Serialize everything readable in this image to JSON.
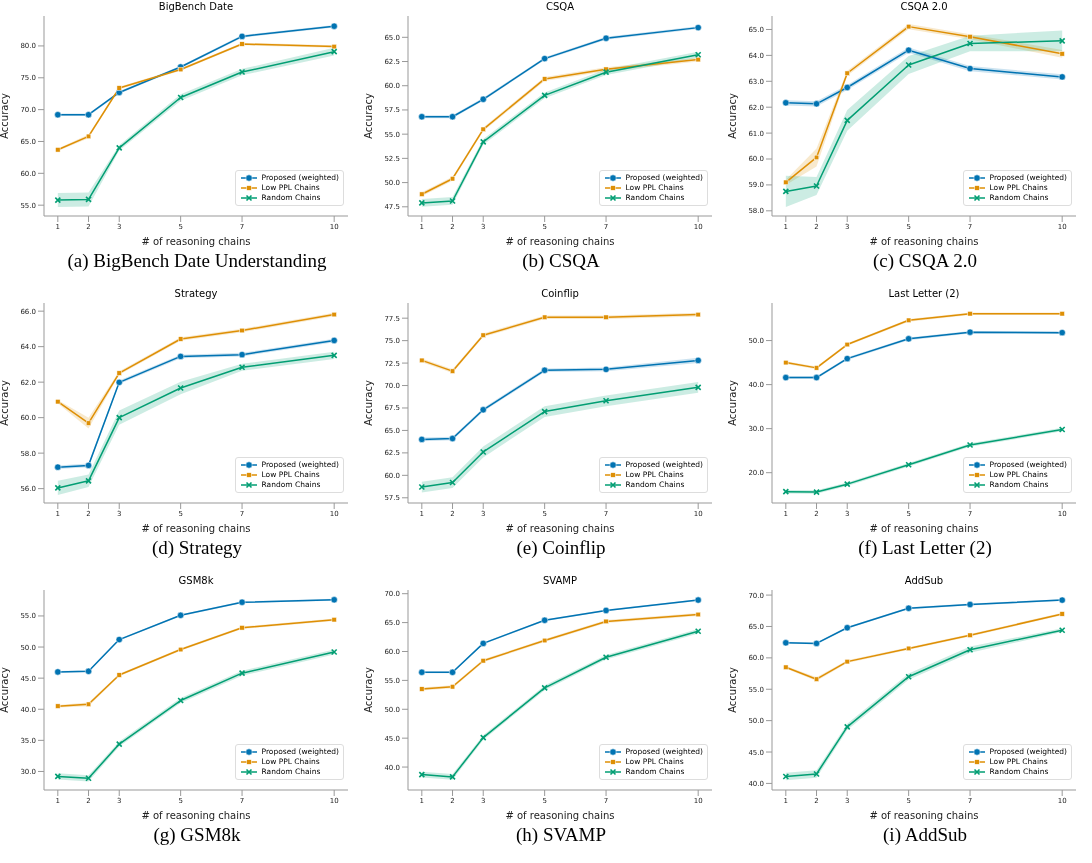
{
  "chart_data": [
    {
      "type": "line",
      "title": "BigBench Date",
      "xlabel": "# of reasoning chains",
      "ylabel": "Accuracy",
      "annotations": [
        "(a) BigBench Date Understanding"
      ],
      "legend": "bottom right",
      "x": [
        1,
        2,
        3,
        5,
        7,
        10
      ],
      "xlim": [
        0.55,
        10.45
      ],
      "xticks": [
        1,
        2,
        3,
        5,
        7,
        10
      ],
      "ylim": [
        53.3,
        84.7
      ],
      "yticks": [
        {
          "value": 55,
          "label": "55.0"
        },
        {
          "value": 60,
          "label": "60.0"
        },
        {
          "value": 65,
          "label": "65.0"
        },
        {
          "value": 70,
          "label": "70.0"
        },
        {
          "value": 75,
          "label": "75.0"
        },
        {
          "value": 80,
          "label": "80.0"
        }
      ],
      "series": [
        {
          "name": "Proposed (weighted)",
          "color": "#0173b2",
          "marker": "circle",
          "values": [
            69.2,
            69.2,
            72.7,
            76.7,
            81.5,
            83.1
          ],
          "lower": [
            69.0,
            69.0,
            72.5,
            76.5,
            81.3,
            82.9
          ],
          "upper": [
            69.4,
            69.4,
            72.9,
            76.9,
            81.7,
            83.3
          ]
        },
        {
          "name": "Low PPL Chains",
          "color": "#de8f05",
          "marker": "square",
          "values": [
            63.7,
            65.8,
            73.4,
            76.3,
            80.3,
            79.9
          ],
          "lower": [
            63.5,
            65.5,
            73.2,
            76.1,
            80.1,
            79.7
          ],
          "upper": [
            63.9,
            66.1,
            73.6,
            76.5,
            80.5,
            80.1
          ]
        },
        {
          "name": "Random Chains",
          "color": "#029e73",
          "marker": "cross",
          "values": [
            55.8,
            55.9,
            64.0,
            71.9,
            75.9,
            79.1
          ],
          "lower": [
            54.7,
            54.8,
            63.6,
            71.4,
            75.4,
            78.5
          ],
          "upper": [
            56.9,
            57.0,
            64.4,
            72.4,
            76.4,
            79.7
          ]
        }
      ]
    },
    {
      "type": "line",
      "title": "CSQA",
      "xlabel": "# of reasoning chains",
      "ylabel": "Accuracy",
      "annotations": [
        "(b) CSQA"
      ],
      "legend": "bottom right",
      "x": [
        1,
        2,
        3,
        5,
        7,
        10
      ],
      "xlim": [
        0.55,
        10.45
      ],
      "xticks": [
        1,
        2,
        3,
        5,
        7,
        10
      ],
      "ylim": [
        46.55,
        67.2
      ],
      "yticks": [
        47.5,
        {
          "value": 50,
          "label": "50.0"
        },
        52.5,
        {
          "value": 55,
          "label": "55.0"
        },
        57.5,
        {
          "value": 60,
          "label": "60.0"
        },
        62.5,
        {
          "value": 65,
          "label": "65.0"
        }
      ],
      "series": [
        {
          "name": "Proposed (weighted)",
          "color": "#0173b2",
          "marker": "circle",
          "values": [
            56.8,
            56.8,
            58.6,
            62.8,
            64.9,
            66.0
          ],
          "lower": [
            56.65,
            56.65,
            58.45,
            62.65,
            64.75,
            65.85
          ],
          "upper": [
            56.95,
            56.95,
            58.75,
            62.95,
            65.05,
            66.15
          ]
        },
        {
          "name": "Low PPL Chains",
          "color": "#de8f05",
          "marker": "square",
          "values": [
            48.8,
            50.4,
            55.5,
            60.7,
            61.7,
            62.7
          ],
          "lower": [
            48.6,
            50.2,
            55.3,
            60.5,
            61.5,
            62.5
          ],
          "upper": [
            49.0,
            50.6,
            55.7,
            60.9,
            61.9,
            62.9
          ]
        },
        {
          "name": "Random Chains",
          "color": "#029e73",
          "marker": "cross",
          "values": [
            47.9,
            48.1,
            54.2,
            59.0,
            61.4,
            63.2
          ],
          "lower": [
            47.5,
            47.7,
            53.9,
            58.7,
            61.1,
            62.9
          ],
          "upper": [
            48.3,
            48.5,
            54.5,
            59.3,
            61.7,
            63.5
          ]
        }
      ]
    },
    {
      "type": "line",
      "title": "CSQA 2.0",
      "xlabel": "# of reasoning chains",
      "ylabel": "Accuracy",
      "annotations": [
        "(c) CSQA 2.0"
      ],
      "legend": "bottom right",
      "x": [
        1,
        2,
        3,
        5,
        7,
        10
      ],
      "xlim": [
        0.55,
        10.45
      ],
      "xticks": [
        1,
        2,
        3,
        5,
        7,
        10
      ],
      "ylim": [
        57.8,
        65.52
      ],
      "yticks": [
        {
          "value": 58,
          "label": "58.0"
        },
        {
          "value": 59,
          "label": "59.0"
        },
        {
          "value": 60,
          "label": "60.0"
        },
        {
          "value": 61,
          "label": "61.0"
        },
        {
          "value": 62,
          "label": "62.0"
        },
        {
          "value": 63,
          "label": "63.0"
        },
        {
          "value": 64,
          "label": "64.0"
        },
        {
          "value": 65,
          "label": "65.0"
        }
      ],
      "series": [
        {
          "name": "Proposed (weighted)",
          "color": "#0173b2",
          "marker": "circle",
          "values": [
            62.17,
            62.13,
            62.76,
            64.2,
            63.49,
            63.17
          ],
          "lower": [
            62.07,
            62.03,
            62.66,
            64.1,
            63.39,
            63.07
          ],
          "upper": [
            62.27,
            62.23,
            62.86,
            64.3,
            63.59,
            63.27
          ]
        },
        {
          "name": "Low PPL Chains",
          "color": "#de8f05",
          "marker": "square",
          "values": [
            59.1,
            60.06,
            63.31,
            65.11,
            64.72,
            64.06
          ],
          "lower": [
            59.0,
            59.71,
            63.21,
            65.01,
            64.62,
            63.91
          ],
          "upper": [
            59.2,
            60.41,
            63.41,
            65.21,
            64.82,
            64.21
          ]
        },
        {
          "name": "Random Chains",
          "color": "#029e73",
          "marker": "cross",
          "values": [
            58.75,
            58.96,
            61.49,
            63.63,
            64.46,
            64.56
          ],
          "lower": [
            58.15,
            58.61,
            61.09,
            63.28,
            64.16,
            64.16
          ],
          "upper": [
            59.35,
            59.31,
            61.89,
            63.98,
            64.76,
            64.96
          ]
        }
      ]
    },
    {
      "type": "line",
      "title": "Strategy",
      "xlabel": "# of reasoning chains",
      "ylabel": "Accuracy",
      "annotations": [
        "(d) Strategy"
      ],
      "legend": "bottom right",
      "x": [
        1,
        2,
        3,
        5,
        7,
        10
      ],
      "xlim": [
        0.55,
        10.45
      ],
      "xticks": [
        1,
        2,
        3,
        5,
        7,
        10
      ],
      "ylim": [
        55.19,
        66.46
      ],
      "yticks": [
        {
          "value": 56,
          "label": "56.0"
        },
        {
          "value": 58,
          "label": "58.0"
        },
        {
          "value": 60,
          "label": "60.0"
        },
        {
          "value": 62,
          "label": "62.0"
        },
        {
          "value": 64,
          "label": "64.0"
        },
        {
          "value": 66,
          "label": "66.0"
        }
      ],
      "series": [
        {
          "name": "Proposed (weighted)",
          "color": "#0173b2",
          "marker": "circle",
          "values": [
            57.21,
            57.31,
            61.99,
            63.45,
            63.55,
            64.35
          ],
          "lower": [
            57.11,
            57.21,
            61.89,
            63.35,
            63.45,
            64.25
          ],
          "upper": [
            57.31,
            57.41,
            62.09,
            63.55,
            63.65,
            64.45
          ]
        },
        {
          "name": "Low PPL Chains",
          "color": "#de8f05",
          "marker": "square",
          "values": [
            60.9,
            59.69,
            62.51,
            64.43,
            64.91,
            65.81
          ],
          "lower": [
            60.8,
            59.39,
            62.41,
            64.33,
            64.81,
            65.71
          ],
          "upper": [
            61.0,
            59.99,
            62.61,
            64.53,
            65.01,
            65.91
          ]
        },
        {
          "name": "Random Chains",
          "color": "#029e73",
          "marker": "cross",
          "values": [
            56.04,
            56.44,
            60.0,
            61.67,
            62.84,
            63.51
          ],
          "lower": [
            55.64,
            56.09,
            59.6,
            61.32,
            62.64,
            63.31
          ],
          "upper": [
            56.44,
            56.79,
            60.4,
            62.02,
            63.04,
            63.71
          ]
        }
      ]
    },
    {
      "type": "line",
      "title": "Coinflip",
      "xlabel": "# of reasoning chains",
      "ylabel": "Accuracy",
      "annotations": [
        "(e) Coinflip"
      ],
      "legend": "bottom right",
      "x": [
        1,
        2,
        3,
        5,
        7,
        10
      ],
      "xlim": [
        0.55,
        10.45
      ],
      "xticks": [
        1,
        2,
        3,
        5,
        7,
        10
      ],
      "ylim": [
        56.92,
        79.19
      ],
      "yticks": [
        57.5,
        {
          "value": 60,
          "label": "60.0"
        },
        62.5,
        {
          "value": 65,
          "label": "65.0"
        },
        67.5,
        {
          "value": 70,
          "label": "70.0"
        },
        72.5,
        {
          "value": 75,
          "label": "75.0"
        },
        77.5
      ],
      "series": [
        {
          "name": "Proposed (weighted)",
          "color": "#0173b2",
          "marker": "circle",
          "values": [
            64.0,
            64.1,
            67.3,
            71.7,
            71.8,
            72.8
          ],
          "lower": [
            63.8,
            63.9,
            67.1,
            71.5,
            71.6,
            72.5
          ],
          "upper": [
            64.2,
            64.3,
            67.5,
            71.9,
            72.0,
            73.1
          ]
        },
        {
          "name": "Low PPL Chains",
          "color": "#de8f05",
          "marker": "square",
          "values": [
            72.8,
            71.6,
            75.6,
            77.6,
            77.6,
            77.9
          ],
          "lower": [
            72.6,
            71.4,
            75.4,
            77.4,
            77.4,
            77.7
          ],
          "upper": [
            73.0,
            71.8,
            75.8,
            77.8,
            77.8,
            78.1
          ]
        },
        {
          "name": "Random Chains",
          "color": "#029e73",
          "marker": "cross",
          "values": [
            58.7,
            59.2,
            62.6,
            67.1,
            68.3,
            69.8
          ],
          "lower": [
            58.1,
            58.6,
            62.0,
            66.5,
            67.7,
            69.2
          ],
          "upper": [
            59.3,
            59.8,
            63.2,
            67.7,
            68.9,
            70.4
          ]
        }
      ]
    },
    {
      "type": "line",
      "title": "Last Letter (2)",
      "xlabel": "# of reasoning chains",
      "ylabel": "Accuracy",
      "annotations": [
        "(f) Last Letter (2)"
      ],
      "legend": "bottom right",
      "x": [
        1,
        2,
        3,
        5,
        7,
        10
      ],
      "xlim": [
        0.55,
        10.45
      ],
      "xticks": [
        1,
        2,
        3,
        5,
        7,
        10
      ],
      "ylim": [
        13.12,
        58.53
      ],
      "yticks": [
        {
          "value": 20,
          "label": "20.0"
        },
        {
          "value": 30,
          "label": "30.0"
        },
        {
          "value": 40,
          "label": "40.0"
        },
        {
          "value": 50,
          "label": "50.0"
        }
      ],
      "series": [
        {
          "name": "Proposed (weighted)",
          "color": "#0173b2",
          "marker": "circle",
          "values": [
            41.6,
            41.6,
            45.9,
            50.4,
            51.9,
            51.8
          ],
          "lower": [
            41.3,
            41.3,
            45.6,
            50.1,
            51.6,
            51.5
          ],
          "upper": [
            41.9,
            41.9,
            46.2,
            50.7,
            52.2,
            52.1
          ]
        },
        {
          "name": "Low PPL Chains",
          "color": "#de8f05",
          "marker": "square",
          "values": [
            45.0,
            43.8,
            49.1,
            54.6,
            56.1,
            56.1
          ],
          "lower": [
            44.7,
            43.5,
            48.8,
            54.3,
            55.8,
            55.8
          ],
          "upper": [
            45.3,
            44.1,
            49.4,
            54.9,
            56.4,
            56.4
          ]
        },
        {
          "name": "Random Chains",
          "color": "#029e73",
          "marker": "cross",
          "values": [
            15.7,
            15.6,
            17.4,
            21.8,
            26.3,
            29.8
          ],
          "lower": [
            15.3,
            15.2,
            17.0,
            21.4,
            25.9,
            29.4
          ],
          "upper": [
            16.1,
            16.0,
            17.8,
            22.2,
            26.7,
            30.2
          ]
        }
      ]
    },
    {
      "type": "line",
      "title": "GSM8k",
      "xlabel": "# of reasoning chains",
      "ylabel": "Accuracy",
      "annotations": [
        "(g) GSM8k"
      ],
      "legend": "bottom right",
      "x": [
        1,
        2,
        3,
        5,
        7,
        10
      ],
      "xlim": [
        0.55,
        10.45
      ],
      "xticks": [
        1,
        2,
        3,
        5,
        7,
        10
      ],
      "ylim": [
        27.02,
        59.17
      ],
      "yticks": [
        {
          "value": 30,
          "label": "30.0"
        },
        {
          "value": 35,
          "label": "35.0"
        },
        {
          "value": 40,
          "label": "40.0"
        },
        {
          "value": 45,
          "label": "45.0"
        },
        {
          "value": 50,
          "label": "50.0"
        },
        {
          "value": 55,
          "label": "55.0"
        }
      ],
      "series": [
        {
          "name": "Proposed (weighted)",
          "color": "#0173b2",
          "marker": "circle",
          "values": [
            46.0,
            46.1,
            51.2,
            55.1,
            57.2,
            57.6
          ],
          "lower": [
            45.85,
            45.95,
            51.05,
            54.95,
            57.05,
            57.45
          ],
          "upper": [
            46.15,
            46.25,
            51.35,
            55.25,
            57.35,
            57.75
          ]
        },
        {
          "name": "Low PPL Chains",
          "color": "#de8f05",
          "marker": "square",
          "values": [
            40.5,
            40.8,
            45.5,
            49.6,
            53.1,
            54.4
          ],
          "lower": [
            40.3,
            40.5,
            45.3,
            49.4,
            52.9,
            54.2
          ],
          "upper": [
            40.7,
            41.1,
            45.7,
            49.8,
            53.3,
            54.6
          ]
        },
        {
          "name": "Random Chains",
          "color": "#029e73",
          "marker": "cross",
          "values": [
            29.2,
            28.9,
            34.4,
            41.4,
            45.8,
            49.2
          ],
          "lower": [
            28.7,
            28.4,
            34.0,
            41.0,
            45.4,
            48.8
          ],
          "upper": [
            29.7,
            29.4,
            34.8,
            41.8,
            46.2,
            49.6
          ]
        }
      ]
    },
    {
      "type": "line",
      "title": "SVAMP",
      "xlabel": "# of reasoning chains",
      "ylabel": "Accuracy",
      "annotations": [
        "(h) SVAMP"
      ],
      "legend": "bottom right",
      "x": [
        1,
        2,
        3,
        5,
        7,
        10
      ],
      "xlim": [
        0.55,
        10.45
      ],
      "xticks": [
        1,
        2,
        3,
        5,
        7,
        10
      ],
      "ylim": [
        36.03,
        70.64
      ],
      "yticks": [
        {
          "value": 40,
          "label": "40.0"
        },
        {
          "value": 45,
          "label": "45.0"
        },
        {
          "value": 50,
          "label": "50.0"
        },
        {
          "value": 55,
          "label": "55.0"
        },
        {
          "value": 60,
          "label": "60.0"
        },
        {
          "value": 65,
          "label": "65.0"
        },
        {
          "value": 70,
          "label": "70.0"
        }
      ],
      "series": [
        {
          "name": "Proposed (weighted)",
          "color": "#0173b2",
          "marker": "circle",
          "values": [
            56.4,
            56.4,
            61.4,
            65.4,
            67.1,
            68.9
          ],
          "lower": [
            56.25,
            56.25,
            61.25,
            65.25,
            66.95,
            68.75
          ],
          "upper": [
            56.55,
            56.55,
            61.55,
            65.55,
            67.25,
            69.05
          ]
        },
        {
          "name": "Low PPL Chains",
          "color": "#de8f05",
          "marker": "square",
          "values": [
            53.5,
            53.9,
            58.4,
            61.9,
            65.2,
            66.4
          ],
          "lower": [
            53.25,
            53.65,
            58.15,
            61.65,
            64.95,
            66.15
          ],
          "upper": [
            53.75,
            54.15,
            58.65,
            62.15,
            65.45,
            66.65
          ]
        },
        {
          "name": "Random Chains",
          "color": "#029e73",
          "marker": "cross",
          "values": [
            38.7,
            38.3,
            45.1,
            53.7,
            59.0,
            63.5
          ],
          "lower": [
            38.2,
            37.8,
            44.7,
            53.3,
            58.6,
            63.1
          ],
          "upper": [
            39.2,
            38.8,
            45.5,
            54.1,
            59.4,
            63.9
          ]
        }
      ]
    },
    {
      "type": "line",
      "title": "AddSub",
      "xlabel": "# of reasoning chains",
      "ylabel": "Accuracy",
      "annotations": [
        "(i) AddSub"
      ],
      "legend": "bottom right",
      "x": [
        1,
        2,
        3,
        5,
        7,
        10
      ],
      "xlim": [
        0.55,
        10.45
      ],
      "xticks": [
        1,
        2,
        3,
        5,
        7,
        10
      ],
      "ylim": [
        38.95,
        70.81
      ],
      "yticks": [
        {
          "value": 40,
          "label": "40.0"
        },
        {
          "value": 45,
          "label": "45.0"
        },
        {
          "value": 50,
          "label": "50.0"
        },
        {
          "value": 55,
          "label": "55.0"
        },
        {
          "value": 60,
          "label": "60.0"
        },
        {
          "value": 65,
          "label": "65.0"
        },
        {
          "value": 70,
          "label": "70.0"
        }
      ],
      "series": [
        {
          "name": "Proposed (weighted)",
          "color": "#0173b2",
          "marker": "circle",
          "values": [
            62.4,
            62.3,
            64.8,
            67.9,
            68.5,
            69.2
          ],
          "lower": [
            62.25,
            62.15,
            64.65,
            67.75,
            68.35,
            69.05
          ],
          "upper": [
            62.55,
            62.45,
            64.95,
            68.05,
            68.65,
            69.35
          ]
        },
        {
          "name": "Low PPL Chains",
          "color": "#de8f05",
          "marker": "square",
          "values": [
            58.5,
            56.6,
            59.4,
            61.5,
            63.6,
            67.0
          ],
          "lower": [
            58.3,
            56.3,
            59.2,
            61.3,
            63.4,
            66.8
          ],
          "upper": [
            58.7,
            56.9,
            59.6,
            61.7,
            63.8,
            67.2
          ]
        },
        {
          "name": "Random Chains",
          "color": "#029e73",
          "marker": "cross",
          "values": [
            41.1,
            41.5,
            49.0,
            57.0,
            61.3,
            64.4
          ],
          "lower": [
            40.5,
            40.9,
            48.5,
            56.5,
            60.8,
            64.1
          ],
          "upper": [
            41.7,
            42.1,
            49.5,
            57.5,
            61.8,
            64.7
          ]
        }
      ]
    }
  ]
}
